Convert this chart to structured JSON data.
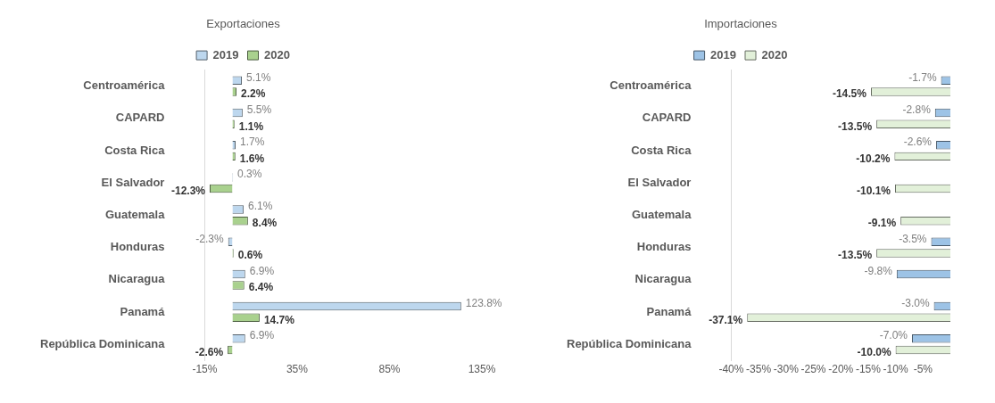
{
  "chart_data": [
    {
      "type": "bar",
      "orientation": "horizontal",
      "title": "Exportaciones",
      "legend": "top",
      "categories": [
        "Centroamérica",
        "CAPARD",
        "Costa Rica",
        "El Salvador",
        "Guatemala",
        "Honduras",
        "Nicaragua",
        "Panamá",
        "República Dominicana"
      ],
      "series": [
        {
          "name": "2019",
          "color": "#bdd7ee",
          "values": [
            5.1,
            5.5,
            1.7,
            0.3,
            6.1,
            -2.3,
            6.9,
            123.8,
            6.9
          ],
          "value_labels": [
            "5.1%",
            "5.5%",
            "1.7%",
            "0.3%",
            "6.1%",
            "-2.3%",
            "6.9%",
            "123.8%",
            "6.9%"
          ]
        },
        {
          "name": "2020",
          "color": "#a9d18e",
          "values": [
            2.2,
            1.1,
            1.6,
            -12.3,
            8.4,
            0.6,
            6.4,
            14.7,
            -2.6
          ],
          "value_labels": [
            "2.2%",
            "1.1%",
            "1.6%",
            "-12.3%",
            "8.4%",
            "0.6%",
            "6.4%",
            "14.7%",
            "-2.6%"
          ]
        }
      ],
      "xlim": [
        -15,
        135
      ],
      "xticks": [
        {
          "value": -15,
          "label": "-15%"
        },
        {
          "value": 35,
          "label": "35%"
        },
        {
          "value": 85,
          "label": "85%"
        },
        {
          "value": 135,
          "label": "135%"
        }
      ],
      "grid": false
    },
    {
      "type": "bar",
      "orientation": "horizontal",
      "title": "Importaciones",
      "legend": "top",
      "categories": [
        "Centroamérica",
        "CAPARD",
        "Costa Rica",
        "El Salvador",
        "Guatemala",
        "Honduras",
        "Nicaragua",
        "Panamá",
        "República Dominicana"
      ],
      "series": [
        {
          "name": "2019",
          "color": "#9dc3e6",
          "values": [
            -1.7,
            -2.8,
            -2.6,
            null,
            null,
            -3.5,
            -9.8,
            -3.0,
            -7.0
          ],
          "value_labels": [
            "-1.7%",
            "-2.8%",
            "-2.6%",
            null,
            null,
            "-3.5%",
            "-9.8%",
            "-3.0%",
            "-7.0%"
          ]
        },
        {
          "name": "2020",
          "color": "#e2f0d9",
          "values": [
            -14.5,
            -13.5,
            -10.2,
            -10.1,
            -9.1,
            -13.5,
            null,
            -37.1,
            -10.0
          ],
          "value_labels": [
            "-14.5%",
            "-13.5%",
            "-10.2%",
            "-10.1%",
            "-9.1%",
            "-13.5%",
            null,
            "-37.1%",
            "-10.0%"
          ]
        }
      ],
      "xlim": [
        -40,
        0
      ],
      "xticks": [
        {
          "value": -40,
          "label": "-40%"
        },
        {
          "value": -35,
          "label": "-35%"
        },
        {
          "value": -30,
          "label": "-30%"
        },
        {
          "value": -25,
          "label": "-25%"
        },
        {
          "value": -20,
          "label": "-20%"
        },
        {
          "value": -15,
          "label": "-15%"
        },
        {
          "value": -10,
          "label": "-10%"
        },
        {
          "value": -5,
          "label": "-5%"
        }
      ],
      "grid": false
    }
  ]
}
